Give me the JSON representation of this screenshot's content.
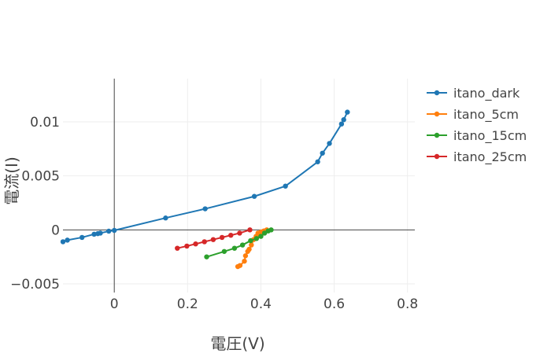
{
  "chart_data": {
    "type": "line",
    "title": "",
    "xlabel": "電圧(V)",
    "ylabel": "電流(I)",
    "xlim": [
      -0.14,
      0.82
    ],
    "ylim": [
      -0.0058,
      0.014
    ],
    "grid": true,
    "legend_position": "right",
    "x_ticks": [
      {
        "value": 0,
        "label": "0"
      },
      {
        "value": 0.2,
        "label": "0.2"
      },
      {
        "value": 0.4,
        "label": "0.4"
      },
      {
        "value": 0.6,
        "label": "0.6"
      },
      {
        "value": 0.8,
        "label": "0.8"
      }
    ],
    "y_ticks": [
      {
        "value": -0.005,
        "label": "−0.005"
      },
      {
        "value": 0,
        "label": "0"
      },
      {
        "value": 0.005,
        "label": "0.005"
      },
      {
        "value": 0.01,
        "label": "0.01"
      }
    ],
    "series": [
      {
        "name": "itano_dark",
        "color": "#1f77b4",
        "x": [
          -0.14,
          -0.128,
          -0.088,
          -0.055,
          -0.045,
          -0.038,
          -0.015,
          0.0,
          0.14,
          0.248,
          0.382,
          0.467,
          0.555,
          0.568,
          0.587,
          0.62,
          0.626,
          0.636
        ],
        "y": [
          -0.0011,
          -0.00095,
          -0.0007,
          -0.0004,
          -0.00035,
          -0.0003,
          -0.00012,
          -5e-05,
          0.0011,
          0.00195,
          0.0031,
          0.00405,
          0.0063,
          0.0071,
          0.008,
          0.0098,
          0.0102,
          0.0109
        ]
      },
      {
        "name": "itano_5cm",
        "color": "#ff7f0e",
        "x": [
          0.337,
          0.343,
          0.355,
          0.358,
          0.364,
          0.368,
          0.374,
          0.38,
          0.387,
          0.392,
          0.4,
          0.408,
          0.416
        ],
        "y": [
          -0.0034,
          -0.0033,
          -0.0029,
          -0.0024,
          -0.002,
          -0.0018,
          -0.0014,
          -0.0009,
          -0.0006,
          -0.0003,
          -0.0002,
          -0.0001,
          0.0
        ]
      },
      {
        "name": "itano_15cm",
        "color": "#2ca02c",
        "x": [
          0.252,
          0.3,
          0.328,
          0.35,
          0.372,
          0.388,
          0.4,
          0.41,
          0.42,
          0.428
        ],
        "y": [
          -0.0025,
          -0.002,
          -0.0017,
          -0.0014,
          -0.001,
          -0.0008,
          -0.0006,
          -0.0003,
          -0.0001,
          0.0
        ]
      },
      {
        "name": "itano_25cm",
        "color": "#d62728",
        "x": [
          0.172,
          0.198,
          0.222,
          0.246,
          0.27,
          0.294,
          0.318,
          0.342,
          0.37
        ],
        "y": [
          -0.0017,
          -0.0015,
          -0.0013,
          -0.0011,
          -0.0009,
          -0.0007,
          -0.0005,
          -0.0003,
          0.0
        ]
      }
    ]
  }
}
